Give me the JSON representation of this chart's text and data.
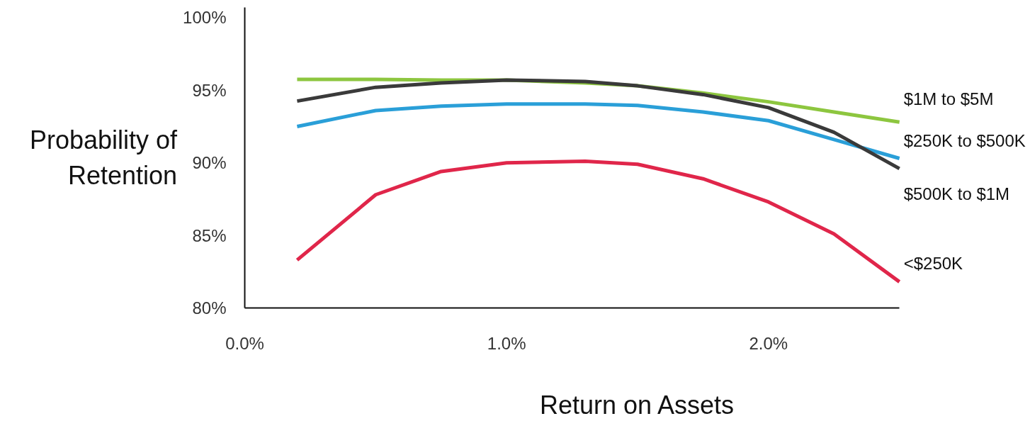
{
  "chart_data": {
    "type": "line",
    "xlabel": "Return on Assets",
    "ylabel": "Probability of Retention",
    "x": [
      0.2,
      0.5,
      0.75,
      1.0,
      1.3,
      1.5,
      1.75,
      2.0,
      2.25,
      2.5
    ],
    "series": [
      {
        "name": "$1M to $5M",
        "color": "#8dc63f",
        "values": [
          95.75,
          95.75,
          95.7,
          95.7,
          95.5,
          95.3,
          94.8,
          94.2,
          93.5,
          92.8
        ]
      },
      {
        "name": "$250K to $500K",
        "color": "#2a9fd8",
        "values": [
          92.5,
          93.6,
          93.9,
          94.05,
          94.05,
          93.95,
          93.5,
          92.9,
          91.6,
          90.3
        ]
      },
      {
        "name": "$500K to $1M",
        "color": "#3a3a3a",
        "values": [
          94.25,
          95.2,
          95.5,
          95.7,
          95.6,
          95.3,
          94.7,
          93.8,
          92.1,
          89.6
        ]
      },
      {
        "name": "<$250K",
        "color": "#e0264a",
        "values": [
          83.3,
          87.8,
          89.4,
          90.0,
          90.1,
          89.9,
          88.9,
          87.3,
          85.1,
          81.8
        ]
      }
    ],
    "xlim": [
      0,
      2.5
    ],
    "ylim": [
      80,
      100.7
    ],
    "xticks": [
      {
        "value": 0,
        "label": "0.0%"
      },
      {
        "value": 1,
        "label": "1.0%"
      },
      {
        "value": 2,
        "label": "2.0%"
      }
    ],
    "yticks": [
      {
        "value": 80,
        "label": "80%"
      },
      {
        "value": 85,
        "label": "85%"
      },
      {
        "value": 90,
        "label": "90%"
      },
      {
        "value": 95,
        "label": "95%"
      },
      {
        "value": 100,
        "label": "100%"
      }
    ],
    "grid": false,
    "legend": false,
    "marker": "none",
    "line_style": "solid"
  }
}
